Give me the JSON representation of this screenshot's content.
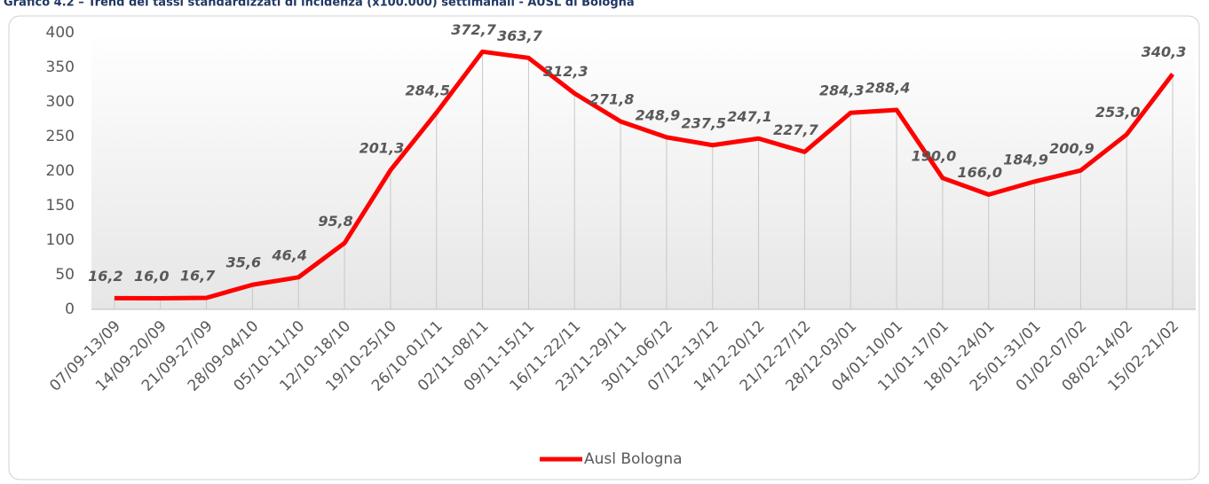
{
  "chart_data": {
    "type": "line",
    "title": "Grafico 4.2 – Trend dei tassi standardizzati di incidenza (x100.000) settimanali - AUSL di Bologna",
    "categories": [
      "07/09-13/09",
      "14/09-20/09",
      "21/09-27/09",
      "28/09-04/10",
      "05/10-11/10",
      "12/10-18/10",
      "19/10-25/10",
      "26/10-01/11",
      "02/11-08/11",
      "09/11-15/11",
      "16/11-22/11",
      "23/11-29/11",
      "30/11-06/12",
      "07/12-13/12",
      "14/12-20/12",
      "21/12-27/12",
      "28/12-03/01",
      "04/01-10/01",
      "11/01-17/01",
      "18/01-24/01",
      "25/01-31/01",
      "01/02-07/02",
      "08/02-14/02",
      "15/02-21/02"
    ],
    "series": [
      {
        "name": "Ausl Bologna",
        "color": "#ff0000",
        "values": [
          16.2,
          16.0,
          16.7,
          35.6,
          46.4,
          95.8,
          201.3,
          284.5,
          372.7,
          363.7,
          312.3,
          271.8,
          248.9,
          237.5,
          247.1,
          227.7,
          284.3,
          288.4,
          190.0,
          166.0,
          184.9,
          200.9,
          253.0,
          340.3
        ],
        "value_labels": [
          "16,2",
          "16,0",
          "16,7",
          "35,6",
          "46,4",
          "95,8",
          "201,3",
          "284,5",
          "372,7",
          "363,7",
          "312,3",
          "271,8",
          "248,9",
          "237,5",
          "247,1",
          "227,7",
          "284,3",
          "288,4",
          "190,0",
          "166,0",
          "184,9",
          "200,9",
          "253,0",
          "340,3"
        ]
      }
    ],
    "ylim": [
      0,
      400
    ],
    "yticks": [
      0,
      50,
      100,
      150,
      200,
      250,
      300,
      350,
      400
    ],
    "drop_lines": true,
    "legend": "bottom"
  }
}
